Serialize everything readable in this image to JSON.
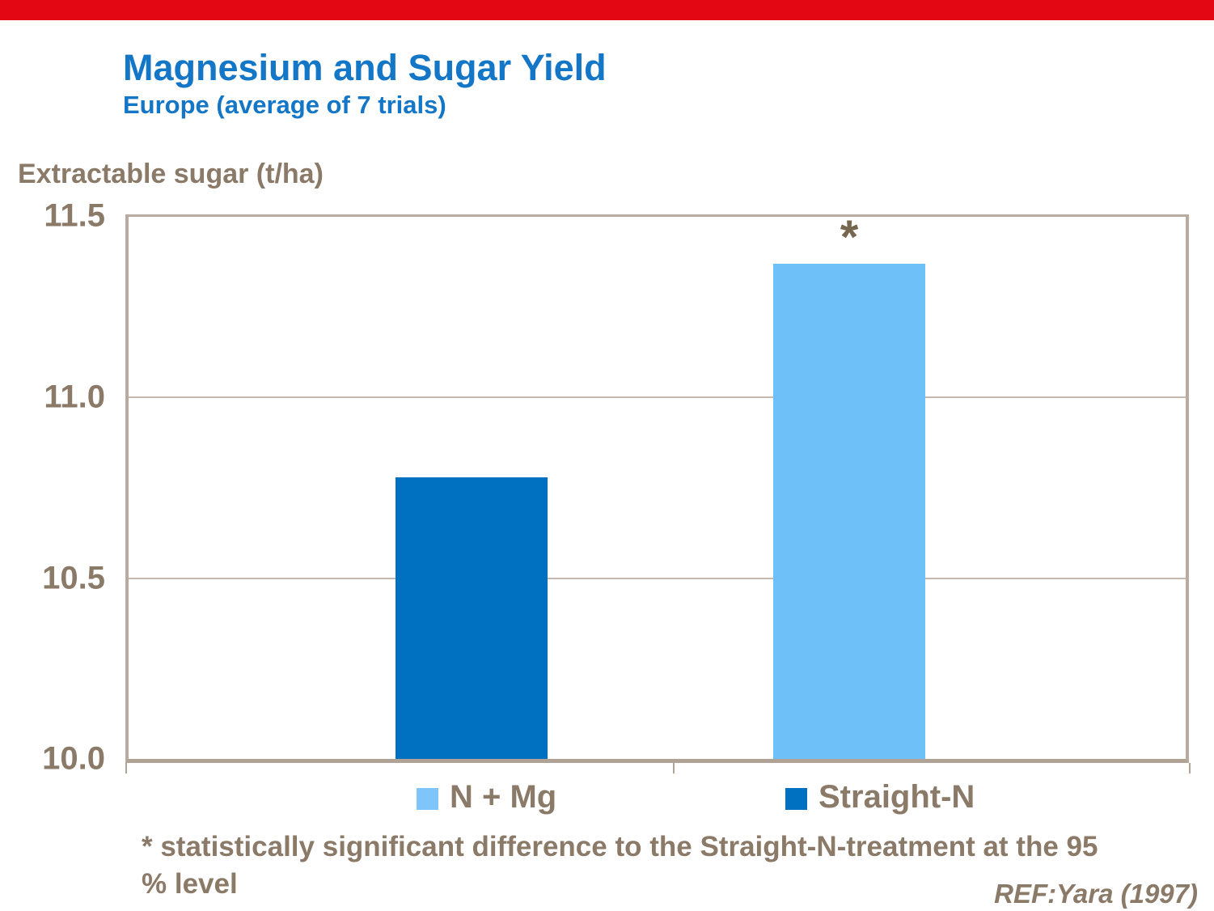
{
  "page": {
    "background": "#ffffff",
    "top_bar_color": "#e30613",
    "accent_blue": "#1476c6",
    "text_taupe": "#8a7a67"
  },
  "header": {
    "title": "Magnesium and Sugar Yield",
    "subtitle": "Europe (average of 7 trials)"
  },
  "chart_data": {
    "type": "bar",
    "title": "Magnesium and Sugar Yield",
    "subtitle": "Europe (average of 7 trials)",
    "ylabel": "Extractable sugar (t/ha)",
    "xlabel": "",
    "ylim": [
      10.0,
      11.5
    ],
    "ytick_labels": [
      "11.5",
      "11.0",
      "10.5",
      "10.0"
    ],
    "grid": true,
    "legend_position": "bottom",
    "series": [
      {
        "name": "Straight-N",
        "value": 10.78,
        "color": "#0070c0",
        "annotation": ""
      },
      {
        "name": "N + Mg",
        "value": 11.37,
        "color": "#6ec0f8",
        "annotation": "*"
      }
    ],
    "legend": [
      {
        "label": "N + Mg",
        "color": "#7fc5fa"
      },
      {
        "label": "Straight-N",
        "color": "#0070c0"
      }
    ]
  },
  "footnote": {
    "line1": "* statistically significant difference to the Straight-N-treatment at the 95",
    "line2": "% level"
  },
  "reference": {
    "text": "REF:Yara (1997)"
  }
}
